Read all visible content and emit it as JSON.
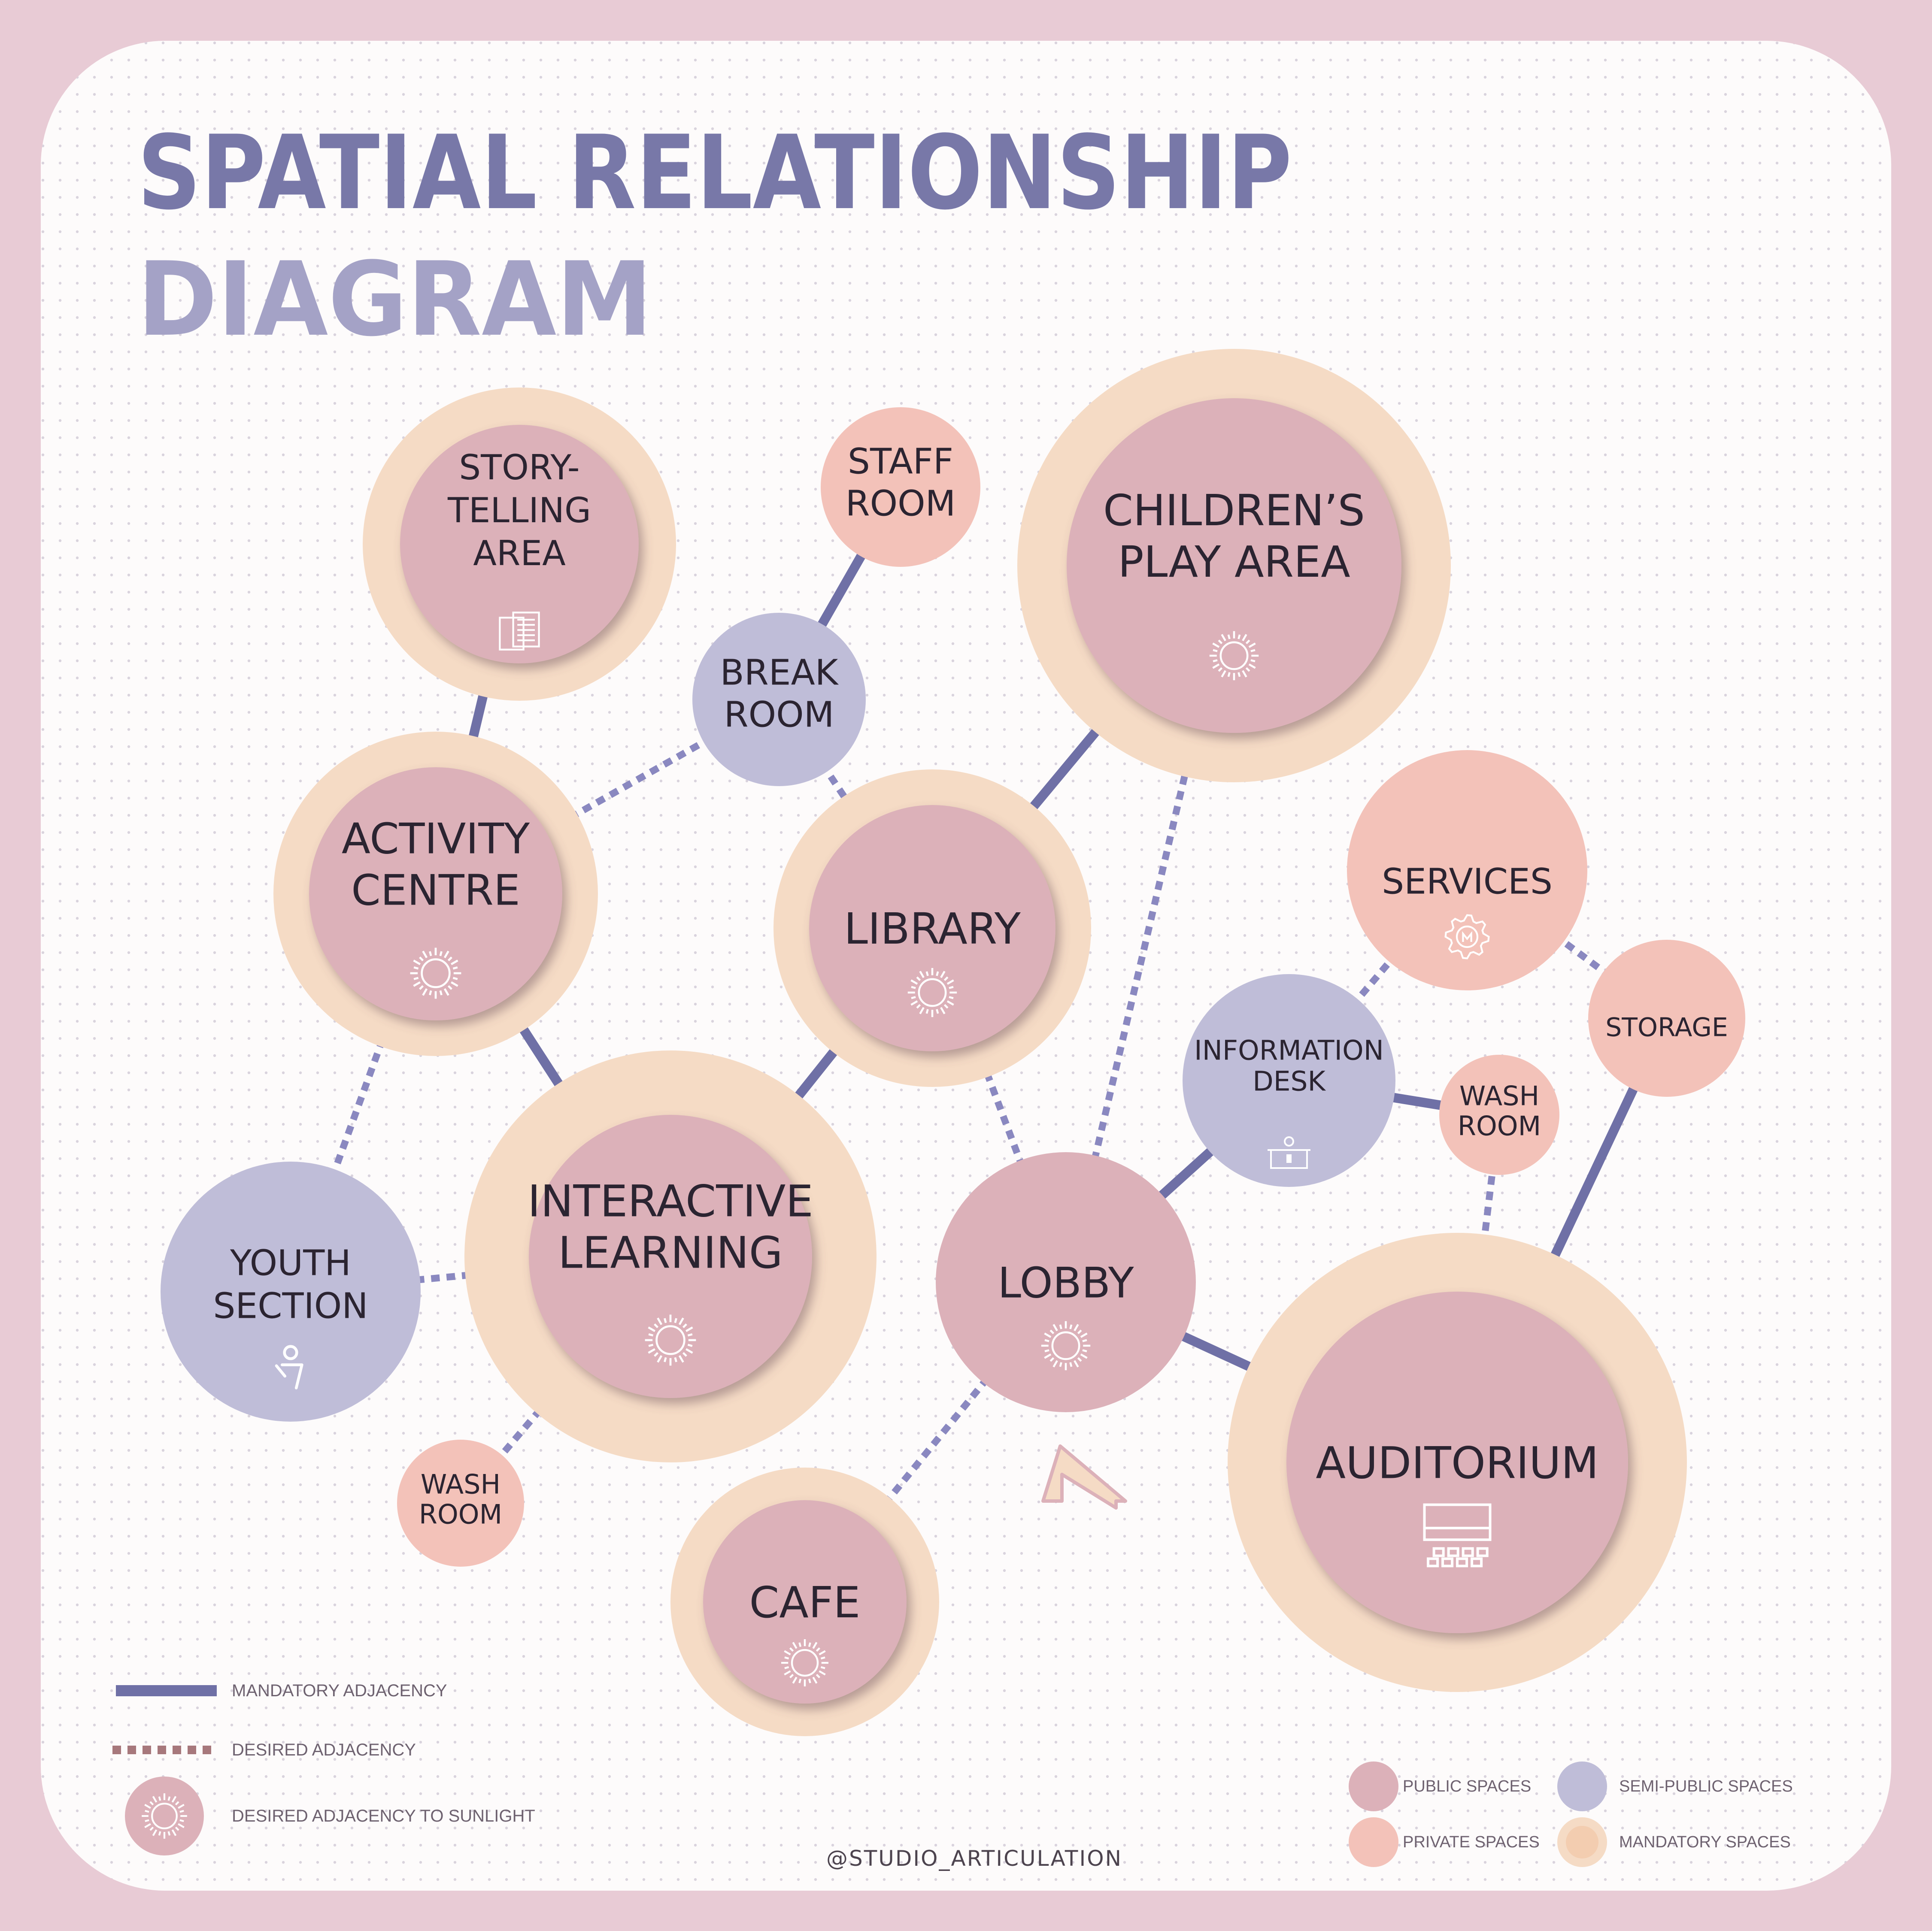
{
  "title": {
    "line1": "SPATIAL RELATIONSHIP",
    "line2": "DIAGRAM"
  },
  "colors": {
    "page_border": "#e8cbd5",
    "canvas": "#fdfbfb",
    "dot_grid": "#d9d3dd",
    "title_line1": "#7878a8",
    "title_line2": "#a4a2c6",
    "public": "#dcb1b9",
    "private": "#f3c2b9",
    "semi_public": "#bfbdd8",
    "mandatory_ring": "#f5dbc5",
    "mandatory_line": "#6f70a6",
    "desired_line": "#8a88c0",
    "desired_legend_line": "#a7787c",
    "room_text": "#2b2431",
    "icon_stroke": "#ffffff"
  },
  "nodes": [
    {
      "id": "story",
      "label_lines": [
        "STORY-",
        "TELLING",
        "AREA"
      ],
      "category": "public",
      "mandatory": true,
      "icon": "document-icon"
    },
    {
      "id": "staff",
      "label_lines": [
        "STAFF",
        "ROOM"
      ],
      "category": "private",
      "mandatory": false,
      "icon": ""
    },
    {
      "id": "break",
      "label_lines": [
        "BREAK",
        "ROOM"
      ],
      "category": "semi-public",
      "mandatory": false,
      "icon": ""
    },
    {
      "id": "children",
      "label_lines": [
        "CHILDREN’S",
        "PLAY AREA"
      ],
      "category": "public",
      "mandatory": true,
      "icon": "sun-icon"
    },
    {
      "id": "activity",
      "label_lines": [
        "ACTIVITY",
        "CENTRE"
      ],
      "category": "public",
      "mandatory": true,
      "icon": "sun-icon"
    },
    {
      "id": "library",
      "label_lines": [
        "LIBRARY"
      ],
      "category": "public",
      "mandatory": true,
      "icon": "sun-icon"
    },
    {
      "id": "services",
      "label_lines": [
        "SERVICES"
      ],
      "category": "private",
      "mandatory": false,
      "icon": "gear-icon"
    },
    {
      "id": "storage",
      "label_lines": [
        "STORAGE"
      ],
      "category": "private",
      "mandatory": false,
      "icon": ""
    },
    {
      "id": "info",
      "label_lines": [
        "INFORMATION",
        "DESK"
      ],
      "category": "semi-public",
      "mandatory": false,
      "icon": "reception-desk-icon"
    },
    {
      "id": "wash_right",
      "label_lines": [
        "WASH",
        "ROOM"
      ],
      "category": "private",
      "mandatory": false,
      "icon": ""
    },
    {
      "id": "interactive",
      "label_lines": [
        "INTERACTIVE",
        "LEARNING"
      ],
      "category": "public",
      "mandatory": true,
      "icon": "sun-icon"
    },
    {
      "id": "youth",
      "label_lines": [
        "YOUTH",
        "SECTION"
      ],
      "category": "semi-public",
      "mandatory": false,
      "icon": "person-icon"
    },
    {
      "id": "lobby",
      "label_lines": [
        "LOBBY"
      ],
      "category": "public",
      "mandatory": false,
      "icon": "sun-icon"
    },
    {
      "id": "wash_left",
      "label_lines": [
        "WASH",
        "ROOM"
      ],
      "category": "private",
      "mandatory": false,
      "icon": ""
    },
    {
      "id": "cafe",
      "label_lines": [
        "CAFE"
      ],
      "category": "public",
      "mandatory": true,
      "icon": "sun-icon"
    },
    {
      "id": "auditorium",
      "label_lines": [
        "AUDITORIUM"
      ],
      "category": "public",
      "mandatory": true,
      "icon": "stage-seating-icon"
    }
  ],
  "links": [
    {
      "from": "story",
      "to": "activity",
      "type": "mandatory"
    },
    {
      "from": "staff",
      "to": "break",
      "type": "mandatory"
    },
    {
      "from": "break",
      "to": "activity",
      "type": "desired"
    },
    {
      "from": "break",
      "to": "library",
      "type": "desired"
    },
    {
      "from": "children",
      "to": "library",
      "type": "mandatory"
    },
    {
      "from": "children",
      "to": "lobby",
      "type": "desired"
    },
    {
      "from": "activity",
      "to": "interactive",
      "type": "mandatory"
    },
    {
      "from": "activity",
      "to": "youth",
      "type": "desired"
    },
    {
      "from": "library",
      "to": "interactive",
      "type": "mandatory"
    },
    {
      "from": "library",
      "to": "lobby",
      "type": "desired"
    },
    {
      "from": "interactive",
      "to": "youth",
      "type": "desired"
    },
    {
      "from": "interactive",
      "to": "wash_left",
      "type": "desired"
    },
    {
      "from": "services",
      "to": "info",
      "type": "desired"
    },
    {
      "from": "services",
      "to": "storage",
      "type": "desired"
    },
    {
      "from": "info",
      "to": "lobby",
      "type": "mandatory"
    },
    {
      "from": "info",
      "to": "wash_right",
      "type": "mandatory"
    },
    {
      "from": "wash_right",
      "to": "auditorium",
      "type": "desired"
    },
    {
      "from": "storage",
      "to": "auditorium",
      "type": "mandatory"
    },
    {
      "from": "lobby",
      "to": "auditorium",
      "type": "mandatory"
    },
    {
      "from": "lobby",
      "to": "cafe",
      "type": "desired"
    }
  ],
  "entrance_marker": {
    "icon": "entrance-chevron-icon"
  },
  "legend": {
    "mandatory_adjacency": "MANDATORY ADJACENCY",
    "desired_adjacency": "DESIRED ADJACENCY",
    "desired_sunlight": "DESIRED ADJACENCY TO SUNLIGHT",
    "public_spaces": "PUBLIC SPACES",
    "private_spaces": "PRIVATE SPACES",
    "semi_public_spaces": "SEMI-PUBLIC SPACES",
    "mandatory_spaces": "MANDATORY SPACES"
  },
  "credit": "@STUDIO_ARTICULATION"
}
